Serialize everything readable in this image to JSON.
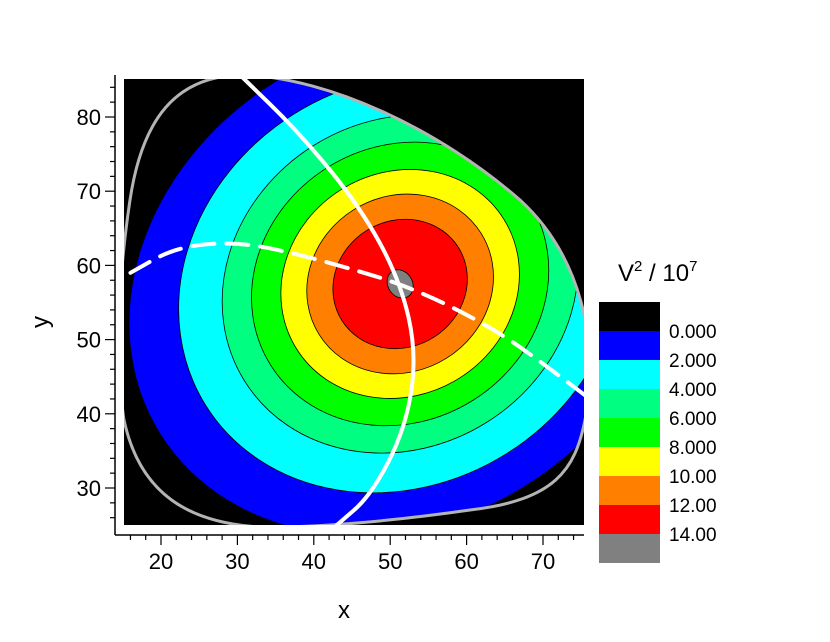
{
  "chart_data": {
    "type": "contour",
    "xlabel": "x",
    "ylabel": "y",
    "xlim": [
      15,
      76
    ],
    "ylim": [
      24,
      86
    ],
    "xticks": [
      20,
      30,
      40,
      50,
      60,
      70
    ],
    "yticks": [
      30,
      40,
      50,
      60,
      70,
      80
    ],
    "tick_labels": {
      "x": [
        "20",
        "30",
        "40",
        "50",
        "60",
        "70"
      ],
      "y": [
        "30",
        "40",
        "50",
        "60",
        "70",
        "80"
      ]
    },
    "colorbar": {
      "title_base": "V",
      "title_exp": "2",
      "title_div": " / 10",
      "title_exp2": "7",
      "levels": [
        "0.000",
        "2.000",
        "4.000",
        "6.000",
        "8.000",
        "10.00",
        "12.00",
        "14.00"
      ],
      "colors": [
        "#000000",
        "#0000ff",
        "#00ffff",
        "#00ff80",
        "#00ff00",
        "#ffff00",
        "#ff8000",
        "#ff0000",
        "#808080"
      ]
    },
    "background_color": "#000000",
    "center": [
      51.3,
      57.5
    ],
    "contours": [
      {
        "level": 0,
        "color": "#0000ff",
        "rx": 37,
        "ry": 32
      },
      {
        "level": 2,
        "color": "#00ffff",
        "rx": 30,
        "ry": 27
      },
      {
        "level": 4,
        "color": "#00ff80",
        "rx": 24,
        "ry": 22
      },
      {
        "level": 6,
        "color": "#00ff00",
        "rx": 20,
        "ry": 18.5
      },
      {
        "level": 8,
        "color": "#ffff00",
        "rx": 16,
        "ry": 15
      },
      {
        "level": 10,
        "color": "#ff8000",
        "rx": 12.5,
        "ry": 11.8
      },
      {
        "level": 12,
        "color": "#ff0000",
        "rx": 9,
        "ry": 8.5
      },
      {
        "level": 14,
        "color": "#808080",
        "rx": 1.6,
        "ry": 2
      }
    ],
    "curves": [
      {
        "name": "",
        "style": "solid",
        "color": "#ffffff",
        "points": [
          [
            30.5,
            85.5
          ],
          [
            38,
            78
          ],
          [
            46,
            68
          ],
          [
            51.3,
            58
          ],
          [
            53.5,
            48
          ],
          [
            52,
            38
          ],
          [
            47.5,
            29
          ],
          [
            43,
            25
          ]
        ]
      },
      {
        "name": "",
        "style": "dashed",
        "color": "#ffffff",
        "points": [
          [
            16,
            59
          ],
          [
            22,
            62.5
          ],
          [
            30,
            63.2
          ],
          [
            38,
            61.5
          ],
          [
            46,
            59.2
          ],
          [
            51.3,
            57.5
          ],
          [
            58,
            54.5
          ],
          [
            65,
            50.5
          ],
          [
            71,
            46
          ],
          [
            75.5,
            42.5
          ]
        ]
      }
    ],
    "grid": false,
    "colorbar_position": "right"
  }
}
